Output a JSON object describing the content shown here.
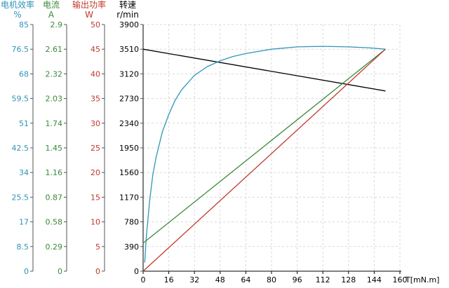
{
  "chart_data": {
    "type": "line",
    "x_axis": {
      "label": "T[mN.m]",
      "min": 0,
      "max": 160,
      "ticks": [
        0,
        16,
        32,
        48,
        64,
        80,
        96,
        112,
        128,
        144,
        160
      ],
      "grid": true
    },
    "y_axes": [
      {
        "id": "eff",
        "title": "电机效率",
        "unit": "%",
        "color": "#2f95b8",
        "min": 0,
        "max": 85,
        "ticks": [
          "0",
          "8.5",
          "17",
          "25.5",
          "34",
          "42.5",
          "51",
          "59.5",
          "68",
          "76.5",
          "85"
        ]
      },
      {
        "id": "cur",
        "title": "电流",
        "unit": "A",
        "color": "#3a8a3a",
        "min": 0,
        "max": 2.9,
        "ticks": [
          "0",
          "0.29",
          "0.58",
          "0.87",
          "1.16",
          "1.45",
          "1.74",
          "2.03",
          "2.32",
          "2.61",
          "2.9"
        ]
      },
      {
        "id": "pow",
        "title": "输出功率",
        "unit": "W",
        "color": "#c0392b",
        "min": 0,
        "max": 50,
        "ticks": [
          "0",
          "5",
          "10",
          "15",
          "20",
          "25",
          "30",
          "35",
          "40",
          "45",
          "50"
        ]
      },
      {
        "id": "spd",
        "title": "转速",
        "unit": "r/min",
        "color": "#000000",
        "min": 0,
        "max": 3900,
        "ticks": [
          "0",
          "390",
          "780",
          "1170",
          "1560",
          "1950",
          "2340",
          "2730",
          "3120",
          "3510",
          "3900"
        ]
      }
    ],
    "series": [
      {
        "axis": "spd",
        "color": "#000000",
        "x": [
          0,
          151
        ],
        "y": [
          3510,
          2850
        ]
      },
      {
        "axis": "eff",
        "color": "#2f95b8",
        "x": [
          1,
          2,
          4,
          6,
          8,
          12,
          16,
          20,
          24,
          32,
          40,
          48,
          56,
          64,
          80,
          96,
          112,
          128,
          140,
          151
        ],
        "y": [
          3,
          12,
          24,
          33,
          39,
          48,
          54,
          59,
          62.5,
          67.5,
          70.5,
          72.5,
          74,
          75,
          76.5,
          77.3,
          77.5,
          77.3,
          77,
          76.5
        ]
      },
      {
        "axis": "cur",
        "color": "#3a8a3a",
        "x": [
          0,
          151
        ],
        "y": [
          0.33,
          2.61
        ]
      },
      {
        "axis": "pow",
        "color": "#c0392b",
        "x": [
          0,
          151
        ],
        "y": [
          0,
          45
        ]
      }
    ]
  }
}
